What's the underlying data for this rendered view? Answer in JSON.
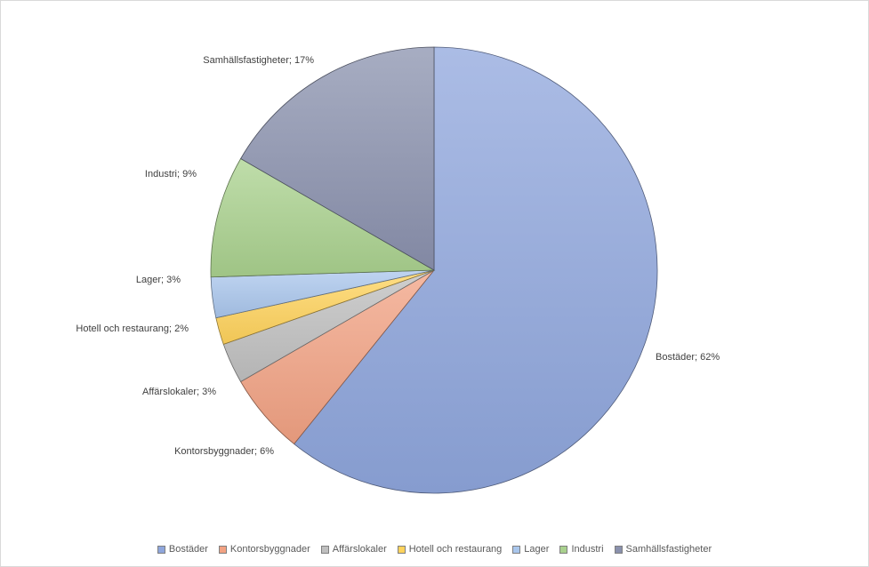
{
  "chart_data": {
    "type": "pie",
    "title": "",
    "categories": [
      "Bostäder",
      "Kontorsbyggnader",
      "Affärslokaler",
      "Hotell och restaurang",
      "Lager",
      "Industri",
      "Samhällsfastigheter"
    ],
    "values": [
      62,
      6,
      3,
      2,
      3,
      9,
      17
    ],
    "unit": "%",
    "data_labels": [
      "Bostäder; 62%",
      "Kontorsbyggnader; 6%",
      "Affärslokaler; 3%",
      "Hotell och restaurang; 2%",
      "Lager; 3%",
      "Industri; 9%",
      "Samhällsfastigheter; 17%"
    ],
    "colors": [
      "#8fa6dc",
      "#f2a283",
      "#bfbfbf",
      "#ffd35c",
      "#a9c6ec",
      "#a9d18e",
      "#8a91ad"
    ],
    "start_angle_deg": 0,
    "direction": "clockwise",
    "legend": {
      "position": "bottom",
      "entries": [
        "Bostäder",
        "Kontorsbyggnader",
        "Affärslokaler",
        "Hotell och restaurang",
        "Lager",
        "Industri",
        "Samhällsfastigheter"
      ]
    }
  }
}
